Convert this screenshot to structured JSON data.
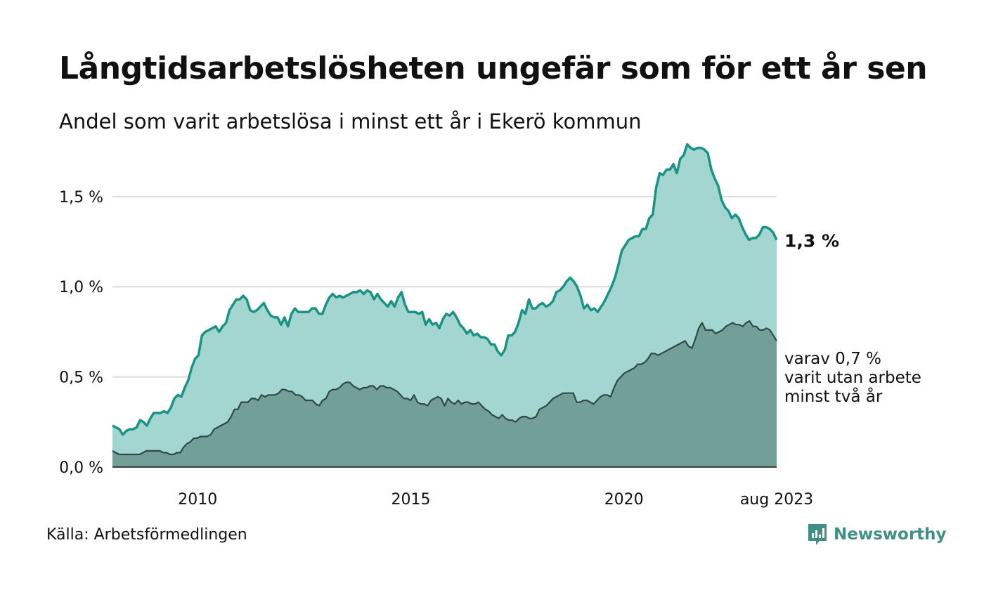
{
  "title": "Långtidsarbetslösheten ungefär som för ett år sen",
  "subtitle": "Andel som varit arbetslösa i minst ett år i Ekerö kommun",
  "source": "Källa: Arbetsförmedlingen",
  "brand": "Newsworthy",
  "colors": {
    "total_fill": "#a3d6d0",
    "total_line": "#1a9384",
    "long_fill": "#72a099",
    "long_line": "#2f4a46",
    "brand": "#3e8f86"
  },
  "chart_data": {
    "type": "area",
    "unit": "%",
    "x_start": "2008-01",
    "x_end": "2023-08",
    "ylim": [
      0,
      1.85
    ],
    "y_ticks": [
      0,
      0.5,
      1.0,
      1.5
    ],
    "y_tick_labels": [
      "0,0 %",
      "0,5 %",
      "1,0 %",
      "1,5 %"
    ],
    "x_ticks": [
      {
        "date": "2010-01",
        "label": "2010"
      },
      {
        "date": "2015-01",
        "label": "2015"
      },
      {
        "date": "2020-01",
        "label": "2020"
      },
      {
        "date": "2023-08",
        "label": "aug 2023"
      }
    ],
    "grid": true,
    "end_labels": {
      "total": "1,3 %",
      "long": [
        "varav 0,7 %",
        "varit utan arbete",
        "minst två år"
      ]
    },
    "series": [
      {
        "key": "total",
        "values": [
          0.23,
          0.22,
          0.21,
          0.18,
          0.2,
          0.21,
          0.21,
          0.22,
          0.26,
          0.25,
          0.23,
          0.27,
          0.3,
          0.3,
          0.3,
          0.31,
          0.3,
          0.33,
          0.38,
          0.4,
          0.39,
          0.44,
          0.48,
          0.55,
          0.6,
          0.62,
          0.73,
          0.75,
          0.76,
          0.77,
          0.78,
          0.75,
          0.78,
          0.8,
          0.87,
          0.9,
          0.93,
          0.93,
          0.95,
          0.93,
          0.87,
          0.86,
          0.87,
          0.89,
          0.91,
          0.87,
          0.84,
          0.83,
          0.83,
          0.79,
          0.83,
          0.78,
          0.85,
          0.88,
          0.86,
          0.86,
          0.86,
          0.86,
          0.88,
          0.88,
          0.85,
          0.85,
          0.9,
          0.94,
          0.96,
          0.94,
          0.95,
          0.94,
          0.95,
          0.96,
          0.97,
          0.97,
          0.98,
          0.96,
          0.98,
          0.97,
          0.93,
          0.96,
          0.93,
          0.91,
          0.89,
          0.92,
          0.89,
          0.94,
          0.97,
          0.9,
          0.86,
          0.86,
          0.86,
          0.85,
          0.86,
          0.79,
          0.82,
          0.79,
          0.8,
          0.77,
          0.82,
          0.85,
          0.84,
          0.86,
          0.83,
          0.79,
          0.77,
          0.74,
          0.76,
          0.73,
          0.74,
          0.72,
          0.72,
          0.71,
          0.68,
          0.68,
          0.64,
          0.62,
          0.65,
          0.73,
          0.73,
          0.75,
          0.8,
          0.87,
          0.85,
          0.93,
          0.88,
          0.88,
          0.9,
          0.91,
          0.89,
          0.9,
          0.92,
          0.97,
          0.98,
          1.0,
          1.03,
          1.05,
          1.03,
          1.0,
          0.95,
          0.88,
          0.9,
          0.87,
          0.88,
          0.86,
          0.89,
          0.92,
          0.96,
          1.0,
          1.05,
          1.12,
          1.2,
          1.23,
          1.26,
          1.27,
          1.28,
          1.28,
          1.32,
          1.32,
          1.38,
          1.4,
          1.55,
          1.63,
          1.62,
          1.65,
          1.65,
          1.68,
          1.63,
          1.71,
          1.73,
          1.79,
          1.77,
          1.76,
          1.77,
          1.77,
          1.76,
          1.74,
          1.65,
          1.6,
          1.56,
          1.48,
          1.44,
          1.42,
          1.38,
          1.4,
          1.38,
          1.33,
          1.29,
          1.26,
          1.27,
          1.27,
          1.29,
          1.33,
          1.33,
          1.32,
          1.3,
          1.26
        ]
      },
      {
        "key": "long",
        "values": [
          0.09,
          0.08,
          0.07,
          0.07,
          0.07,
          0.07,
          0.07,
          0.07,
          0.07,
          0.08,
          0.09,
          0.09,
          0.09,
          0.09,
          0.09,
          0.08,
          0.08,
          0.07,
          0.07,
          0.08,
          0.08,
          0.11,
          0.13,
          0.14,
          0.16,
          0.16,
          0.17,
          0.17,
          0.17,
          0.18,
          0.21,
          0.22,
          0.23,
          0.24,
          0.25,
          0.28,
          0.32,
          0.32,
          0.36,
          0.36,
          0.36,
          0.38,
          0.38,
          0.37,
          0.4,
          0.39,
          0.4,
          0.4,
          0.4,
          0.41,
          0.43,
          0.43,
          0.42,
          0.42,
          0.4,
          0.4,
          0.39,
          0.37,
          0.37,
          0.37,
          0.35,
          0.34,
          0.37,
          0.38,
          0.42,
          0.43,
          0.43,
          0.44,
          0.46,
          0.47,
          0.47,
          0.45,
          0.44,
          0.43,
          0.44,
          0.44,
          0.45,
          0.45,
          0.43,
          0.45,
          0.45,
          0.44,
          0.44,
          0.43,
          0.42,
          0.4,
          0.38,
          0.38,
          0.37,
          0.4,
          0.36,
          0.35,
          0.35,
          0.34,
          0.37,
          0.38,
          0.39,
          0.38,
          0.34,
          0.38,
          0.36,
          0.35,
          0.37,
          0.35,
          0.36,
          0.36,
          0.35,
          0.35,
          0.36,
          0.34,
          0.32,
          0.31,
          0.29,
          0.28,
          0.27,
          0.29,
          0.27,
          0.26,
          0.26,
          0.25,
          0.27,
          0.28,
          0.28,
          0.27,
          0.27,
          0.28,
          0.32,
          0.33,
          0.34,
          0.36,
          0.38,
          0.39,
          0.4,
          0.41,
          0.41,
          0.41,
          0.41,
          0.36,
          0.36,
          0.37,
          0.37,
          0.36,
          0.35,
          0.37,
          0.39,
          0.4,
          0.4,
          0.39,
          0.44,
          0.48,
          0.5,
          0.52,
          0.53,
          0.54,
          0.55,
          0.57,
          0.57,
          0.58,
          0.6,
          0.63,
          0.63,
          0.62,
          0.63,
          0.64,
          0.65,
          0.66,
          0.67,
          0.68,
          0.69,
          0.7,
          0.67,
          0.66,
          0.71,
          0.77,
          0.8,
          0.76,
          0.76,
          0.76,
          0.74,
          0.75,
          0.76,
          0.78,
          0.79,
          0.8,
          0.79,
          0.79,
          0.78,
          0.8,
          0.81,
          0.78,
          0.78,
          0.76,
          0.76,
          0.77,
          0.76,
          0.73,
          0.7
        ]
      }
    ]
  }
}
